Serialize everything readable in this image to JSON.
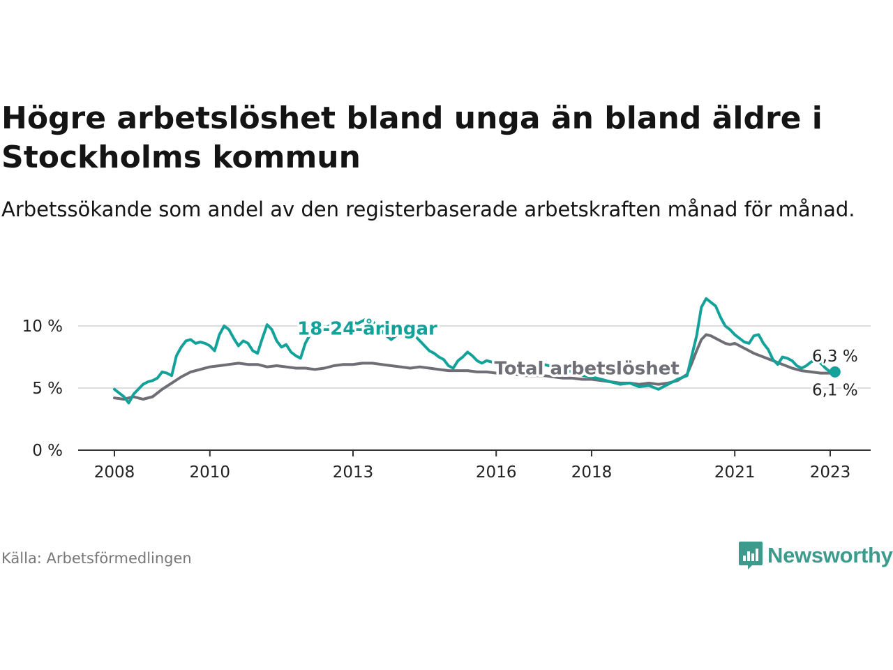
{
  "header": {
    "title": "Högre arbetslöshet bland unga än bland äldre i Stockholms kommun",
    "subtitle": "Arbetssökande som andel av den registerbaserade arbetskraften månad för månad."
  },
  "footer": {
    "source": "Källa: Arbetsförmedlingen",
    "brand": "Newsworthy"
  },
  "colors": {
    "youth": "#13a29a",
    "total": "#6e6e76",
    "brand": "#3d9b8e"
  },
  "chart_data": {
    "type": "line",
    "title": "Högre arbetslöshet bland unga än bland äldre i Stockholms kommun",
    "xlabel": "",
    "ylabel": "",
    "ylim": [
      0,
      12
    ],
    "xlim": [
      2008.0,
      2023.2
    ],
    "grid": true,
    "y_ticks": [
      {
        "value": 0,
        "label": "0 %"
      },
      {
        "value": 5,
        "label": "5 %"
      },
      {
        "value": 10,
        "label": "10 %"
      }
    ],
    "x_ticks": [
      {
        "value": 2008,
        "label": "2008"
      },
      {
        "value": 2010,
        "label": "2010"
      },
      {
        "value": 2013,
        "label": "2013"
      },
      {
        "value": 2016,
        "label": "2016"
      },
      {
        "value": 2018,
        "label": "2018"
      },
      {
        "value": 2021,
        "label": "2021"
      },
      {
        "value": 2023,
        "label": "2023"
      }
    ],
    "series": [
      {
        "name": "18-24-åringar",
        "color": "#13a29a",
        "x": [
          2008.0,
          2008.1,
          2008.2,
          2008.3,
          2008.4,
          2008.5,
          2008.6,
          2008.7,
          2008.8,
          2008.9,
          2009.0,
          2009.1,
          2009.2,
          2009.3,
          2009.4,
          2009.5,
          2009.6,
          2009.7,
          2009.8,
          2009.9,
          2010.0,
          2010.1,
          2010.2,
          2010.3,
          2010.4,
          2010.5,
          2010.6,
          2010.7,
          2010.8,
          2010.9,
          2011.0,
          2011.1,
          2011.2,
          2011.3,
          2011.4,
          2011.5,
          2011.6,
          2011.7,
          2011.8,
          2011.9,
          2012.0,
          2012.1,
          2012.2,
          2012.3,
          2012.4,
          2012.5,
          2012.6,
          2012.7,
          2012.8,
          2012.9,
          2013.0,
          2013.1,
          2013.2,
          2013.3,
          2013.4,
          2013.5,
          2013.6,
          2013.7,
          2013.8,
          2013.9,
          2014.0,
          2014.1,
          2014.2,
          2014.3,
          2014.4,
          2014.5,
          2014.6,
          2014.7,
          2014.8,
          2014.9,
          2015.0,
          2015.1,
          2015.2,
          2015.3,
          2015.4,
          2015.5,
          2015.6,
          2015.7,
          2015.8,
          2015.9,
          2016.0,
          2016.2,
          2016.4,
          2016.6,
          2016.8,
          2017.0,
          2017.2,
          2017.4,
          2017.6,
          2017.8,
          2018.0,
          2018.2,
          2018.4,
          2018.6,
          2018.8,
          2019.0,
          2019.2,
          2019.4,
          2019.6,
          2019.8,
          2020.0,
          2020.1,
          2020.2,
          2020.3,
          2020.4,
          2020.5,
          2020.6,
          2020.7,
          2020.8,
          2020.9,
          2021.0,
          2021.1,
          2021.2,
          2021.3,
          2021.4,
          2021.5,
          2021.6,
          2021.7,
          2021.8,
          2021.9,
          2022.0,
          2022.1,
          2022.2,
          2022.3,
          2022.4,
          2022.5,
          2022.6,
          2022.7,
          2022.8,
          2022.9,
          2023.0,
          2023.1
        ],
        "values": [
          4.9,
          4.6,
          4.3,
          3.8,
          4.5,
          4.9,
          5.3,
          5.5,
          5.6,
          5.8,
          6.3,
          6.2,
          6.0,
          7.6,
          8.3,
          8.8,
          8.9,
          8.6,
          8.7,
          8.6,
          8.4,
          8.0,
          9.3,
          10.0,
          9.7,
          9.0,
          8.4,
          8.8,
          8.6,
          8.0,
          7.8,
          9.0,
          10.1,
          9.7,
          8.8,
          8.3,
          8.5,
          7.9,
          7.6,
          7.4,
          8.6,
          9.3,
          9.7,
          9.6,
          9.8,
          10.0,
          10.3,
          10.1,
          9.9,
          10.1,
          10.3,
          10.2,
          10.4,
          10.6,
          10.4,
          10.0,
          9.6,
          9.2,
          8.9,
          9.2,
          9.6,
          9.8,
          9.5,
          9.2,
          8.8,
          8.4,
          8.0,
          7.8,
          7.5,
          7.3,
          6.8,
          6.6,
          7.2,
          7.5,
          7.9,
          7.6,
          7.2,
          7.0,
          7.2,
          7.1,
          7.0,
          6.9,
          6.8,
          6.7,
          6.6,
          6.9,
          6.7,
          6.5,
          6.3,
          6.0,
          5.9,
          5.7,
          5.5,
          5.3,
          5.4,
          5.1,
          5.2,
          4.9,
          5.3,
          5.7,
          6.0,
          7.6,
          9.2,
          11.5,
          12.2,
          11.9,
          11.6,
          10.7,
          10.0,
          9.7,
          9.3,
          9.0,
          8.7,
          8.6,
          9.2,
          9.3,
          8.6,
          8.1,
          7.3,
          6.9,
          7.5,
          7.4,
          7.2,
          6.8,
          6.6,
          6.8,
          7.1,
          7.3,
          7.0,
          6.6,
          6.3,
          6.3
        ]
      },
      {
        "name": "Total arbetslöshet",
        "color": "#6e6e76",
        "x": [
          2008.0,
          2008.2,
          2008.4,
          2008.6,
          2008.8,
          2009.0,
          2009.2,
          2009.4,
          2009.6,
          2009.8,
          2010.0,
          2010.2,
          2010.4,
          2010.6,
          2010.8,
          2011.0,
          2011.2,
          2011.4,
          2011.6,
          2011.8,
          2012.0,
          2012.2,
          2012.4,
          2012.6,
          2012.8,
          2013.0,
          2013.2,
          2013.4,
          2013.6,
          2013.8,
          2014.0,
          2014.2,
          2014.4,
          2014.6,
          2014.8,
          2015.0,
          2015.2,
          2015.4,
          2015.6,
          2015.8,
          2016.0,
          2016.2,
          2016.4,
          2016.6,
          2016.8,
          2017.0,
          2017.2,
          2017.4,
          2017.6,
          2017.8,
          2018.0,
          2018.2,
          2018.4,
          2018.6,
          2018.8,
          2019.0,
          2019.2,
          2019.4,
          2019.6,
          2019.8,
          2020.0,
          2020.1,
          2020.2,
          2020.3,
          2020.4,
          2020.5,
          2020.6,
          2020.7,
          2020.8,
          2020.9,
          2021.0,
          2021.2,
          2021.4,
          2021.6,
          2021.8,
          2022.0,
          2022.2,
          2022.4,
          2022.6,
          2022.8,
          2023.0,
          2023.1
        ],
        "values": [
          4.2,
          4.1,
          4.3,
          4.1,
          4.3,
          4.9,
          5.4,
          5.9,
          6.3,
          6.5,
          6.7,
          6.8,
          6.9,
          7.0,
          6.9,
          6.9,
          6.7,
          6.8,
          6.7,
          6.6,
          6.6,
          6.5,
          6.6,
          6.8,
          6.9,
          6.9,
          7.0,
          7.0,
          6.9,
          6.8,
          6.7,
          6.6,
          6.7,
          6.6,
          6.5,
          6.4,
          6.4,
          6.4,
          6.3,
          6.3,
          6.2,
          6.2,
          6.1,
          6.0,
          6.0,
          6.0,
          5.9,
          5.8,
          5.8,
          5.7,
          5.7,
          5.6,
          5.5,
          5.4,
          5.4,
          5.3,
          5.4,
          5.3,
          5.4,
          5.6,
          6.1,
          7.0,
          8.0,
          8.9,
          9.3,
          9.2,
          9.0,
          8.8,
          8.6,
          8.5,
          8.6,
          8.2,
          7.8,
          7.5,
          7.2,
          6.9,
          6.6,
          6.4,
          6.3,
          6.2,
          6.2,
          6.1
        ]
      }
    ],
    "annotations": [
      {
        "series": "18-24-åringar",
        "text": "18-24-åringar",
        "x": 2013.3,
        "y": 9.3
      },
      {
        "series": "Total arbetslöshet",
        "text": "Total arbetslöshet",
        "x": 2017.9,
        "y": 6.1
      }
    ],
    "end_labels": [
      {
        "series": "18-24-åringar",
        "text": "6,3 %"
      },
      {
        "series": "Total arbetslöshet",
        "text": "6,1 %"
      }
    ]
  }
}
